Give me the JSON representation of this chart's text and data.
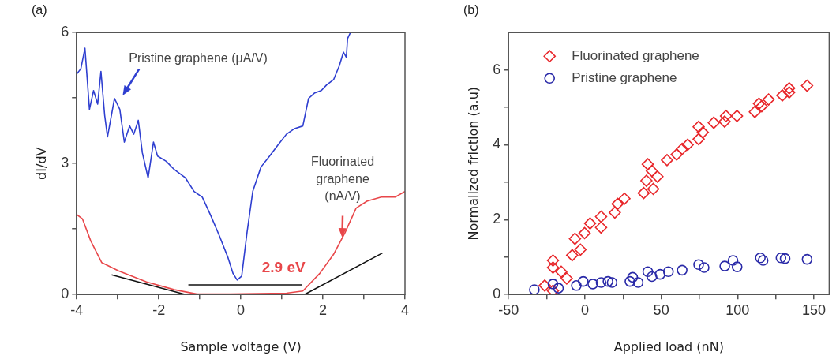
{
  "chart_data": [
    {
      "type": "line",
      "title": "(a)",
      "xlabel": "Sample voltage (V)",
      "ylabel": "dI/dV",
      "xlim": [
        -4,
        4
      ],
      "ylim": [
        0,
        6
      ],
      "xticks": [
        -4,
        {
          "value": -3,
          "label": null
        },
        -2,
        {
          "value": -1,
          "label": null
        },
        0,
        {
          "value": 1,
          "label": null
        },
        2,
        {
          "value": 3,
          "label": null
        },
        4
      ],
      "yticks": [
        0,
        {
          "value": 1.5,
          "label": null
        },
        3,
        {
          "value": 4.5,
          "label": null
        },
        6
      ],
      "series": [
        {
          "color": "#2f3fd0",
          "x": [
            -4,
            -3.9,
            -3.8,
            -3.69,
            -3.59,
            -3.49,
            -3.41,
            -3.32,
            -3.25,
            -3.08,
            -2.95,
            -2.84,
            -2.71,
            -2.61,
            -2.5,
            -2.4,
            -2.26,
            -2.13,
            -2.03,
            -1.82,
            -1.62,
            -1.35,
            -1.14,
            -0.94,
            -0.73,
            -0.53,
            -0.32,
            -0.19,
            -0.09,
            0.02,
            0.15,
            0.29,
            0.49,
            0.7,
            0.9,
            1.11,
            1.31,
            1.51,
            1.65,
            1.79,
            1.96,
            2.09,
            2.26,
            2.4,
            2.5,
            2.57,
            2.6,
            2.67
          ],
          "values": [
            5.05,
            5.17,
            5.64,
            4.24,
            4.67,
            4.36,
            5.11,
            4.11,
            3.61,
            4.49,
            4.24,
            3.49,
            3.86,
            3.67,
            3.99,
            3.24,
            2.67,
            3.49,
            3.17,
            3.05,
            2.86,
            2.67,
            2.36,
            2.23,
            1.8,
            1.36,
            0.86,
            0.48,
            0.33,
            0.42,
            1.42,
            2.36,
            2.92,
            3.17,
            3.42,
            3.67,
            3.8,
            3.86,
            4.49,
            4.61,
            4.67,
            4.8,
            4.92,
            5.24,
            5.55,
            5.43,
            5.86,
            6
          ]
        },
        {
          "color": "#e8474a",
          "x": [
            -4,
            -3.86,
            -3.66,
            -3.39,
            -2.98,
            -2.3,
            -1.62,
            -1.07,
            -0.26,
            1.11,
            1.51,
            1.92,
            2.26,
            2.54,
            2.81,
            3.08,
            3.42,
            3.76,
            4
          ],
          "values": [
            1.83,
            1.73,
            1.23,
            0.73,
            0.54,
            0.29,
            0.11,
            0.01,
            0.01,
            0.03,
            0.08,
            0.48,
            0.92,
            1.42,
            1.98,
            2.14,
            2.23,
            2.23,
            2.36
          ]
        },
        {
          "color": "#111111",
          "x": [
            -3.15,
            -1.35
          ],
          "values": [
            0.45,
            0
          ]
        },
        {
          "color": "#111111",
          "x": [
            1.55,
            3.45
          ],
          "values": [
            0,
            0.95
          ]
        },
        {
          "color": "#111111",
          "x": [
            -1.28,
            1.48
          ],
          "values": [
            0.22,
            0.22
          ]
        }
      ],
      "annotations": [
        "Pristine graphene (μA/V)",
        {
          "text": "Fluorinated graphene (nA/V)",
          "x": 2.47,
          "y": 1.25
        },
        "2.9 eV"
      ]
    },
    {
      "type": "scatter",
      "title": "(b)",
      "xlabel": "Applied load (nN)",
      "ylabel": "Normalized friction (a.u)",
      "xlim": [
        -50,
        160
      ],
      "ylim": [
        0,
        7
      ],
      "xticks": [
        -50,
        {
          "value": -25,
          "label": null
        },
        0,
        {
          "value": 25,
          "label": null
        },
        50,
        {
          "value": 75,
          "label": null
        },
        100,
        {
          "value": 125,
          "label": null
        },
        150
      ],
      "yticks": [
        0,
        {
          "value": 1,
          "label": null
        },
        2,
        {
          "value": 3,
          "label": null
        },
        4,
        {
          "value": 5,
          "label": null
        },
        6
      ],
      "legend": "top left",
      "series": [
        {
          "name": "Fluorinated graphene",
          "color": "#e8262a",
          "marker": "diamond",
          "x": [
            -26.3,
            -20.9,
            -20.9,
            -20.9,
            -15.5,
            -11.9,
            -8.3,
            -6.5,
            -2.9,
            -0.2,
            3.4,
            10.6,
            10.6,
            19.6,
            21.4,
            25.9,
            38.5,
            40.3,
            41.2,
            43.9,
            44.8,
            47.5,
            53.8,
            60.1,
            63.7,
            67.3,
            74.5,
            74.5,
            77.2,
            84.4,
            91.5,
            92.4,
            99.6,
            111.3,
            114,
            115.8,
            120.3,
            129.3,
            133.8,
            133.8,
            145.5
          ],
          "values": [
            0.24,
            0.91,
            0.72,
            0.1,
            0.61,
            0.43,
            1.05,
            1.49,
            1.2,
            1.64,
            1.9,
            1.79,
            2.08,
            2.19,
            2.42,
            2.56,
            2.71,
            3.04,
            3.48,
            3.3,
            2.82,
            3.15,
            3.59,
            3.74,
            3.89,
            4,
            4.15,
            4.48,
            4.33,
            4.59,
            4.62,
            4.77,
            4.77,
            4.88,
            5.1,
            5.03,
            5.21,
            5.32,
            5.4,
            5.51,
            5.58
          ]
        },
        {
          "name": "Pristine graphene",
          "color": "#2a2aa8",
          "marker": "circle",
          "x": [
            -33.1,
            -20.9,
            -17.3,
            -5.6,
            -1.1,
            5.2,
            10.6,
            15.1,
            17.8,
            29.5,
            31.3,
            34.9,
            41.2,
            43.9,
            49.3,
            54.7,
            63.7,
            74.5,
            78.1,
            91.6,
            97,
            99.7,
            114.9,
            116.7,
            128.4,
            131.1,
            145.5
          ],
          "values": [
            0.13,
            0.28,
            0.17,
            0.24,
            0.35,
            0.28,
            0.32,
            0.35,
            0.32,
            0.35,
            0.46,
            0.32,
            0.61,
            0.48,
            0.54,
            0.61,
            0.65,
            0.8,
            0.72,
            0.76,
            0.91,
            0.74,
            0.98,
            0.91,
            0.98,
            0.96,
            0.94
          ]
        }
      ]
    }
  ]
}
